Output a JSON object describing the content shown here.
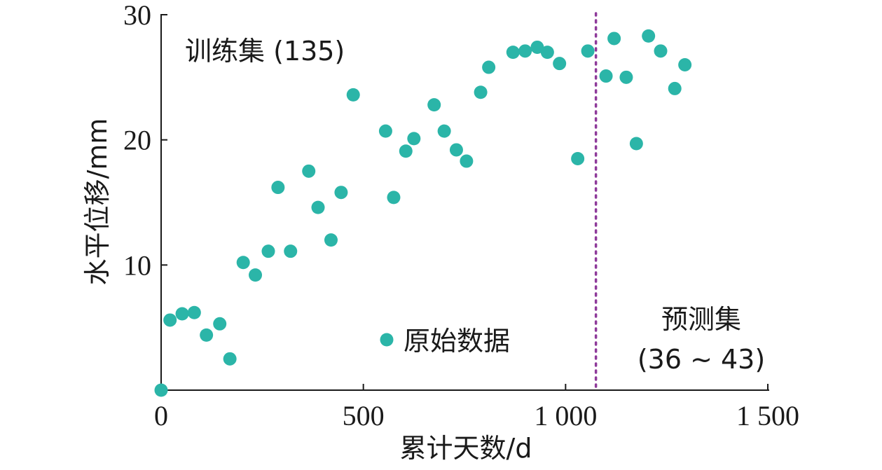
{
  "chart_data": {
    "type": "scatter",
    "xlabel": "累计天数/d",
    "ylabel": "水平位移/mm",
    "xlim": [
      0,
      1500
    ],
    "ylim": [
      0,
      30
    ],
    "x_ticks": [
      {
        "value": 0,
        "label": "0"
      },
      {
        "value": 500,
        "label": "500"
      },
      {
        "value": 1000,
        "label": "1 000"
      },
      {
        "value": 1500,
        "label": "1 500"
      }
    ],
    "y_ticks": [
      {
        "value": 10,
        "label": "10"
      },
      {
        "value": 20,
        "label": "20"
      },
      {
        "value": 30,
        "label": "30"
      }
    ],
    "grid": false,
    "marker_color": "#2bb5a8",
    "divider_color": "#8e3a9a",
    "divider_x": 1075,
    "legend": {
      "label": "原始数据",
      "placement": "lower-center"
    },
    "annotations": {
      "train": "训练集 (135)",
      "test_line1": "预测集",
      "test_line2": "(36 ~ 43)"
    },
    "series": [
      {
        "x": [
          0,
          22,
          52,
          82,
          112,
          145,
          170,
          203,
          233,
          265,
          289,
          320,
          365,
          388,
          420,
          445,
          475,
          555,
          575,
          605,
          625,
          675,
          700,
          730,
          755,
          790,
          810,
          870,
          900,
          930,
          955,
          985,
          1030,
          1055,
          1100,
          1120,
          1150,
          1175,
          1205,
          1235,
          1270,
          1295
        ],
        "y": [
          0,
          5.6,
          6.1,
          6.2,
          4.4,
          5.3,
          2.5,
          10.2,
          9.2,
          11.1,
          16.2,
          11.1,
          17.5,
          14.6,
          12.0,
          15.8,
          23.6,
          20.7,
          15.4,
          19.1,
          20.1,
          22.8,
          20.7,
          19.2,
          18.3,
          23.8,
          25.8,
          27.0,
          27.1,
          27.4,
          27.0,
          26.1,
          18.5,
          27.1,
          25.1,
          28.1,
          25.0,
          19.7,
          28.3,
          27.1,
          24.1,
          26.0
        ]
      }
    ]
  }
}
